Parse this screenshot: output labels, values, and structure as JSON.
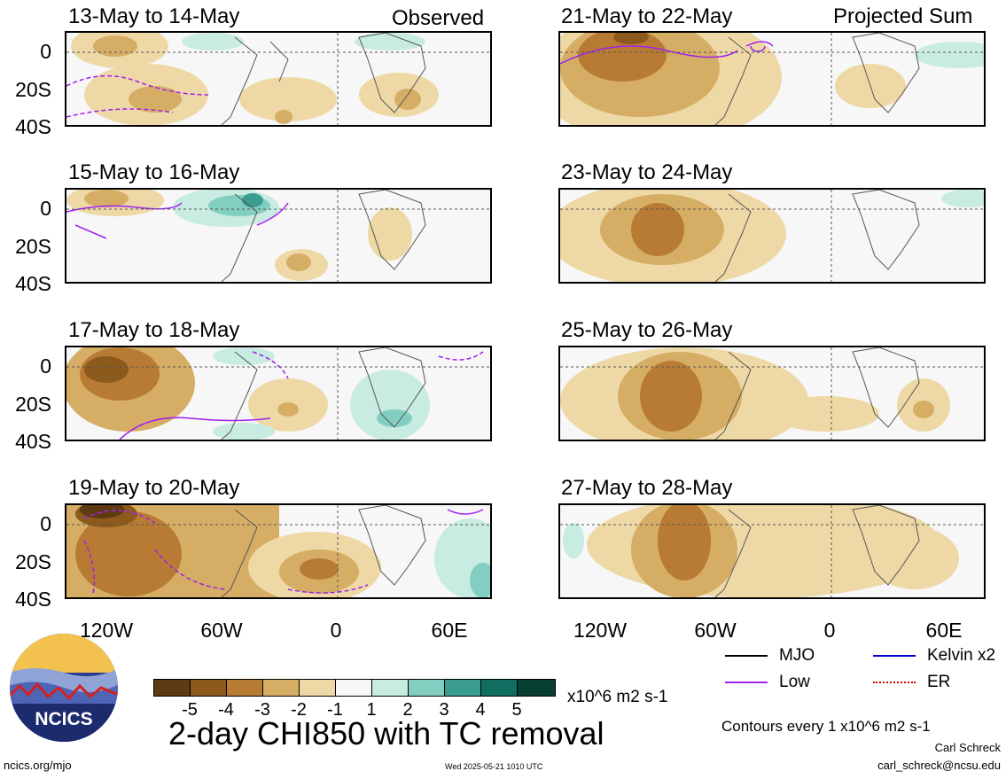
{
  "headers": {
    "observed": "Observed",
    "projected": "Projected Sum"
  },
  "panels": [
    {
      "title": "13-May to 14-May",
      "column": "observed"
    },
    {
      "title": "15-May to 16-May",
      "column": "observed"
    },
    {
      "title": "17-May to 18-May",
      "column": "observed"
    },
    {
      "title": "19-May to 20-May",
      "column": "observed"
    },
    {
      "title": "21-May to 22-May",
      "column": "projected"
    },
    {
      "title": "23-May to 24-May",
      "column": "projected"
    },
    {
      "title": "25-May to 26-May",
      "column": "projected"
    },
    {
      "title": "27-May to 28-May",
      "column": "projected"
    }
  ],
  "y_labels": [
    "0",
    "20S",
    "40S"
  ],
  "x_labels": [
    "120W",
    "60W",
    "0",
    "60E"
  ],
  "colorbar": {
    "labels": [
      "-5",
      "-4",
      "-3",
      "-2",
      "-1",
      "1",
      "2",
      "3",
      "4",
      "5"
    ],
    "colors": [
      "#5e3a12",
      "#8b5a1c",
      "#b87b34",
      "#d6ad64",
      "#eed9a6",
      "#f7f7f7",
      "#c8ebe2",
      "#82cfc1",
      "#3a9d90",
      "#0f6e5f",
      "#073f33"
    ],
    "units": "x10^6 m2 s-1"
  },
  "main_title": "2-day CHI850 with TC removal",
  "legend": [
    {
      "label": "MJO",
      "color": "#000000"
    },
    {
      "label": "Kelvin x2",
      "color": "#0000cc"
    },
    {
      "label": "Low",
      "color": "#a020f0"
    },
    {
      "label": "ER",
      "color": "#d00000"
    }
  ],
  "contour_note": "Contours every 1 x10^6 m2 s-1",
  "author": "Carl Schreck",
  "email": "carl_schreck@ncsu.edu",
  "website": "ncics.org/mjo",
  "timestamp": "Wed 2025-05-21 1010 UTC",
  "logo_text": "NCICS"
}
